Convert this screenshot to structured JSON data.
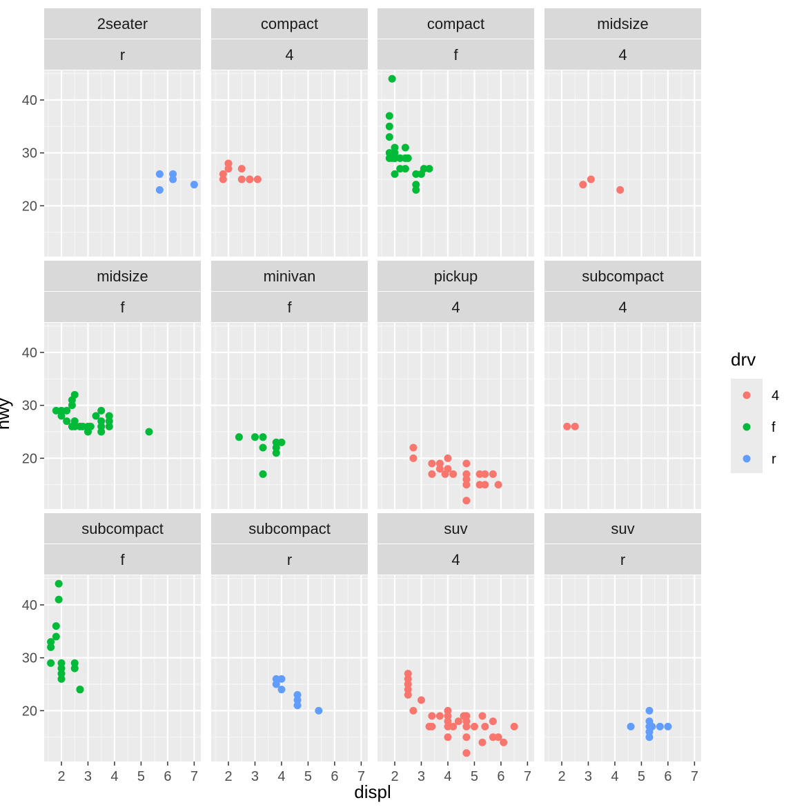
{
  "chart_data": {
    "type": "scatter",
    "title": "",
    "xlabel": "displ",
    "ylabel": "hwy",
    "xlim": [
      1.35,
      7.25
    ],
    "ylim": [
      10.4,
      45.6
    ],
    "x_ticks": [
      2,
      3,
      4,
      5,
      6,
      7
    ],
    "y_ticks": [
      20,
      30,
      40
    ],
    "grid": true,
    "facet_rows": 3,
    "facet_cols": 4,
    "legend": {
      "title": "drv",
      "placement": "right",
      "entries": [
        {
          "label": "4",
          "color": "#F8766D"
        },
        {
          "label": "f",
          "color": "#00BA38"
        },
        {
          "label": "r",
          "color": "#619CFF"
        }
      ]
    },
    "panels": [
      {
        "strip_top": "2seater",
        "strip_bottom": "r",
        "color": "#619CFF",
        "points": [
          [
            5.7,
            26
          ],
          [
            5.7,
            23
          ],
          [
            6.2,
            26
          ],
          [
            6.2,
            25
          ],
          [
            7.0,
            24
          ]
        ]
      },
      {
        "strip_top": "compact",
        "strip_bottom": "4",
        "color": "#F8766D",
        "points": [
          [
            1.8,
            26
          ],
          [
            1.8,
            25
          ],
          [
            2.0,
            28
          ],
          [
            2.0,
            27
          ],
          [
            2.8,
            25
          ],
          [
            2.8,
            25
          ],
          [
            3.1,
            25
          ],
          [
            2.5,
            27
          ],
          [
            2.5,
            25
          ],
          [
            2.0,
            28
          ]
        ]
      },
      {
        "strip_top": "compact",
        "strip_bottom": "f",
        "color": "#00BA38",
        "points": [
          [
            1.9,
            44
          ],
          [
            1.8,
            37
          ],
          [
            1.8,
            35
          ],
          [
            1.8,
            33
          ],
          [
            1.8,
            30
          ],
          [
            1.8,
            29
          ],
          [
            2.0,
            31
          ],
          [
            2.0,
            30
          ],
          [
            2.0,
            29
          ],
          [
            2.0,
            26
          ],
          [
            2.2,
            29
          ],
          [
            2.2,
            27
          ],
          [
            2.4,
            29
          ],
          [
            2.4,
            27
          ],
          [
            2.4,
            31
          ],
          [
            2.5,
            29
          ],
          [
            2.8,
            26
          ],
          [
            2.8,
            24
          ],
          [
            2.8,
            23
          ],
          [
            3.0,
            26
          ],
          [
            3.1,
            27
          ],
          [
            3.3,
            27
          ],
          [
            2.0,
            29
          ],
          [
            1.9,
            29
          ]
        ]
      },
      {
        "strip_top": "midsize",
        "strip_bottom": "4",
        "color": "#F8766D",
        "points": [
          [
            2.8,
            24
          ],
          [
            3.1,
            25
          ],
          [
            4.2,
            23
          ]
        ]
      },
      {
        "strip_top": "midsize",
        "strip_bottom": "f",
        "color": "#00BA38",
        "points": [
          [
            1.8,
            29
          ],
          [
            2.0,
            29
          ],
          [
            2.0,
            28
          ],
          [
            2.2,
            29
          ],
          [
            2.4,
            30
          ],
          [
            2.4,
            31
          ],
          [
            2.5,
            32
          ],
          [
            2.5,
            26
          ],
          [
            2.5,
            27
          ],
          [
            2.2,
            27
          ],
          [
            2.4,
            26
          ],
          [
            2.7,
            26
          ],
          [
            2.8,
            26
          ],
          [
            3.0,
            26
          ],
          [
            3.0,
            25
          ],
          [
            3.1,
            26
          ],
          [
            3.3,
            28
          ],
          [
            3.5,
            29
          ],
          [
            3.5,
            27
          ],
          [
            3.5,
            26
          ],
          [
            3.5,
            25
          ],
          [
            3.8,
            28
          ],
          [
            3.8,
            27
          ],
          [
            3.8,
            26
          ],
          [
            5.3,
            25
          ]
        ]
      },
      {
        "strip_top": "minivan",
        "strip_bottom": "f",
        "color": "#00BA38",
        "points": [
          [
            2.4,
            24
          ],
          [
            3.0,
            24
          ],
          [
            3.3,
            24
          ],
          [
            3.3,
            22
          ],
          [
            3.3,
            17
          ],
          [
            3.8,
            23
          ],
          [
            3.8,
            22
          ],
          [
            3.8,
            21
          ],
          [
            4.0,
            23
          ]
        ]
      },
      {
        "strip_top": "pickup",
        "strip_bottom": "4",
        "color": "#F8766D",
        "points": [
          [
            2.7,
            22
          ],
          [
            2.7,
            20
          ],
          [
            3.4,
            19
          ],
          [
            3.4,
            17
          ],
          [
            3.7,
            19
          ],
          [
            3.7,
            18
          ],
          [
            3.9,
            17
          ],
          [
            4.0,
            20
          ],
          [
            4.0,
            18
          ],
          [
            4.2,
            17
          ],
          [
            4.7,
            19
          ],
          [
            4.7,
            17
          ],
          [
            4.7,
            16
          ],
          [
            4.7,
            15
          ],
          [
            4.7,
            12
          ],
          [
            5.2,
            17
          ],
          [
            5.2,
            15
          ],
          [
            5.4,
            17
          ],
          [
            5.4,
            15
          ],
          [
            5.7,
            17
          ],
          [
            5.9,
            15
          ]
        ]
      },
      {
        "strip_top": "subcompact",
        "strip_bottom": "4",
        "color": "#F8766D",
        "points": [
          [
            2.2,
            26
          ],
          [
            2.5,
            26
          ]
        ]
      },
      {
        "strip_top": "subcompact",
        "strip_bottom": "f",
        "color": "#00BA38",
        "points": [
          [
            1.6,
            33
          ],
          [
            1.6,
            32
          ],
          [
            1.6,
            29
          ],
          [
            1.8,
            36
          ],
          [
            1.8,
            34
          ],
          [
            1.9,
            44
          ],
          [
            1.9,
            41
          ],
          [
            2.0,
            29
          ],
          [
            2.0,
            28
          ],
          [
            2.0,
            27
          ],
          [
            2.0,
            26
          ],
          [
            2.5,
            29
          ],
          [
            2.5,
            28
          ],
          [
            2.7,
            24
          ],
          [
            2.7,
            24
          ]
        ]
      },
      {
        "strip_top": "subcompact",
        "strip_bottom": "r",
        "color": "#619CFF",
        "points": [
          [
            3.8,
            26
          ],
          [
            3.8,
            25
          ],
          [
            4.0,
            26
          ],
          [
            4.0,
            24
          ],
          [
            4.6,
            23
          ],
          [
            4.6,
            22
          ],
          [
            4.6,
            21
          ],
          [
            5.4,
            20
          ]
        ]
      },
      {
        "strip_top": "suv",
        "strip_bottom": "4",
        "color": "#F8766D",
        "points": [
          [
            2.5,
            27
          ],
          [
            2.5,
            26
          ],
          [
            2.5,
            25
          ],
          [
            2.5,
            24
          ],
          [
            2.5,
            23
          ],
          [
            2.7,
            20
          ],
          [
            3.0,
            22
          ],
          [
            3.3,
            17
          ],
          [
            3.4,
            19
          ],
          [
            3.4,
            17
          ],
          [
            3.7,
            19
          ],
          [
            4.0,
            20
          ],
          [
            4.0,
            19
          ],
          [
            4.0,
            18
          ],
          [
            4.0,
            17
          ],
          [
            4.0,
            15
          ],
          [
            4.2,
            17
          ],
          [
            4.4,
            18
          ],
          [
            4.6,
            19
          ],
          [
            4.7,
            19
          ],
          [
            4.7,
            18
          ],
          [
            4.7,
            17
          ],
          [
            4.7,
            15
          ],
          [
            4.7,
            12
          ],
          [
            5.0,
            17
          ],
          [
            5.3,
            19
          ],
          [
            5.3,
            14
          ],
          [
            5.4,
            17
          ],
          [
            5.7,
            18
          ],
          [
            5.7,
            15
          ],
          [
            5.9,
            15
          ],
          [
            6.1,
            14
          ],
          [
            6.5,
            17
          ]
        ]
      },
      {
        "strip_top": "suv",
        "strip_bottom": "r",
        "color": "#619CFF",
        "points": [
          [
            4.6,
            17
          ],
          [
            5.3,
            20
          ],
          [
            5.3,
            18
          ],
          [
            5.3,
            17
          ],
          [
            5.3,
            16
          ],
          [
            5.3,
            15
          ],
          [
            5.4,
            17
          ],
          [
            5.7,
            17
          ],
          [
            6.0,
            17
          ]
        ]
      }
    ]
  }
}
